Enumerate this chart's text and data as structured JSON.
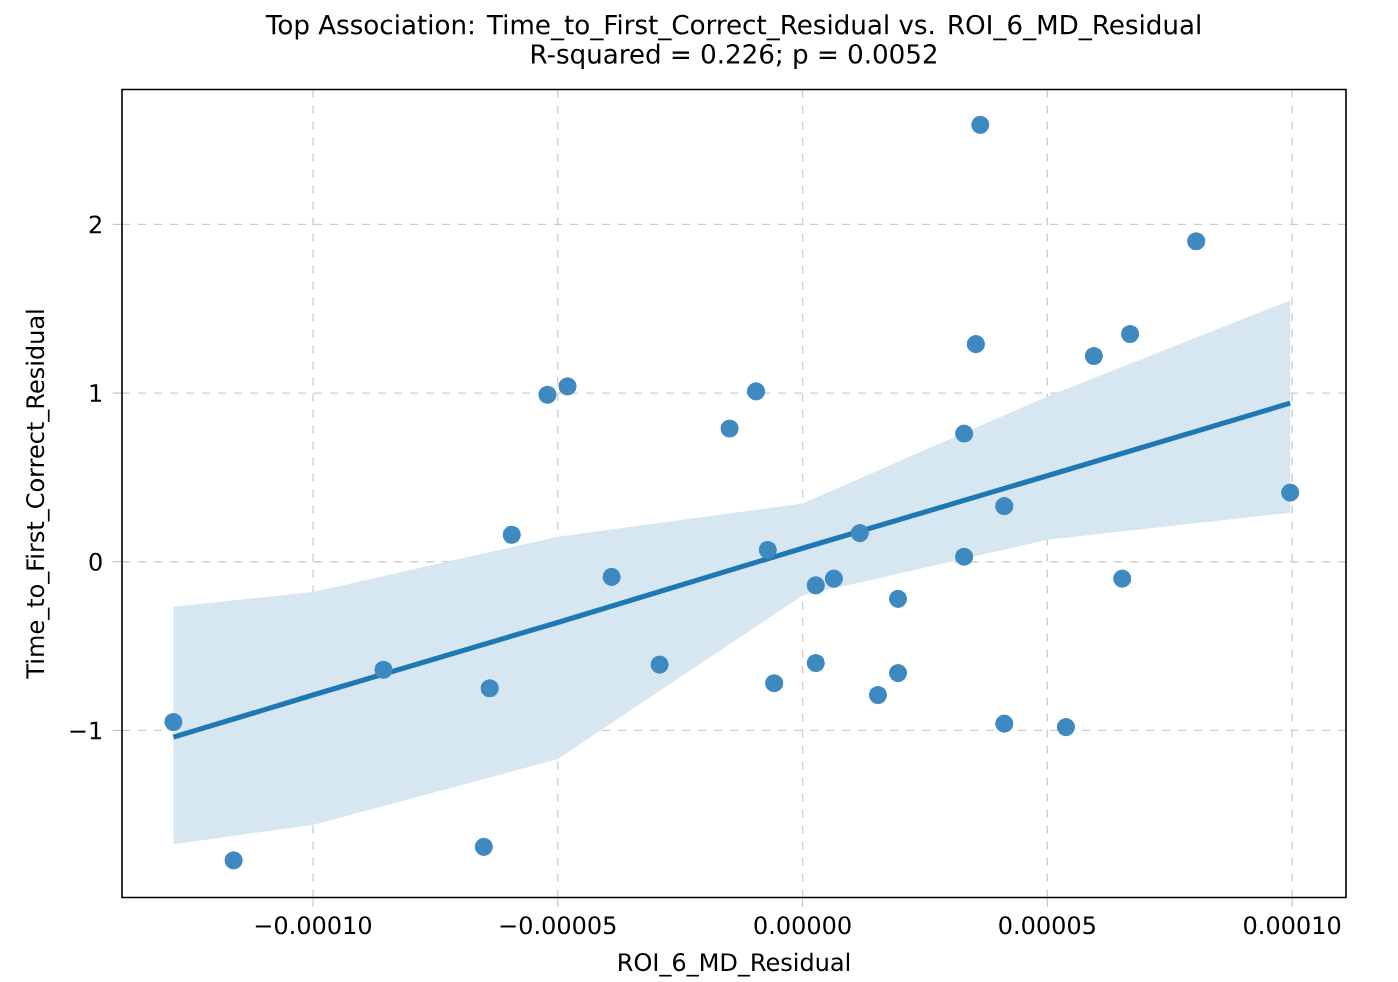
{
  "chart_data": {
    "type": "scatter",
    "title": "Top Association: Time_to_First_Correct_Residual vs. ROI_6_MD_Residual",
    "subtitle": "R-squared = 0.226; p = 0.0052",
    "xlabel": "ROI_6_MD_Residual",
    "ylabel": "Time_to_First_Correct_Residual",
    "xlim": [
      -0.000139,
      0.000111
    ],
    "ylim": [
      -1.99,
      2.8
    ],
    "xticks": [
      {
        "value": -0.0001,
        "label": "−0.00010"
      },
      {
        "value": -5e-05,
        "label": "−0.00005"
      },
      {
        "value": 0,
        "label": "0.00000"
      },
      {
        "value": 5e-05,
        "label": "0.00005"
      },
      {
        "value": 0.0001,
        "label": "0.00010"
      }
    ],
    "yticks": [
      {
        "value": -1,
        "label": "−1"
      },
      0,
      1,
      2
    ],
    "grid": true,
    "series": [
      {
        "color": "#3f89c1",
        "x": [
          -0.0001285,
          -0.0001162,
          -8.56e-05,
          -6.39e-05,
          -6.51e-05,
          -5.94e-05,
          -5.21e-05,
          -4.8e-05,
          -3.9e-05,
          -2.92e-05,
          -1.49e-05,
          -9.5e-06,
          -7.1e-06,
          -5.8e-06,
          2.7e-06,
          2.7e-06,
          6.4e-06,
          1.17e-05,
          1.54e-05,
          1.95e-05,
          1.95e-05,
          3.3e-05,
          3.3e-05,
          3.54e-05,
          3.63e-05,
          4.12e-05,
          4.12e-05,
          5.38e-05,
          5.95e-05,
          6.69e-05,
          8.04e-05,
          9.96e-05,
          6.53e-05
        ],
        "values": [
          -0.95,
          -1.77,
          -0.64,
          -0.75,
          -1.69,
          0.16,
          0.99,
          1.04,
          -0.09,
          -0.61,
          0.79,
          1.01,
          0.07,
          -0.72,
          -0.14,
          -0.6,
          -0.1,
          0.17,
          -0.79,
          -0.22,
          -0.66,
          0.03,
          0.76,
          1.29,
          2.59,
          0.33,
          -0.96,
          -0.98,
          1.22,
          1.35,
          1.9,
          0.41,
          -0.1
        ]
      },
      {
        "type": "line",
        "color": "#1f77b4",
        "line_style": "solid",
        "marker": "none",
        "x": [
          -0.0001285,
          -0.0001,
          -5e-05,
          0,
          5e-05,
          9.96e-05
        ],
        "values": [
          -1.04,
          -0.79,
          -0.36,
          0.08,
          0.51,
          0.94
        ],
        "lower": [
          -1.674,
          -1.56,
          -1.17,
          -0.2,
          0.13,
          0.29
        ],
        "upper": [
          -0.267,
          -0.18,
          0.148,
          0.345,
          0.98,
          1.55
        ]
      }
    ]
  }
}
